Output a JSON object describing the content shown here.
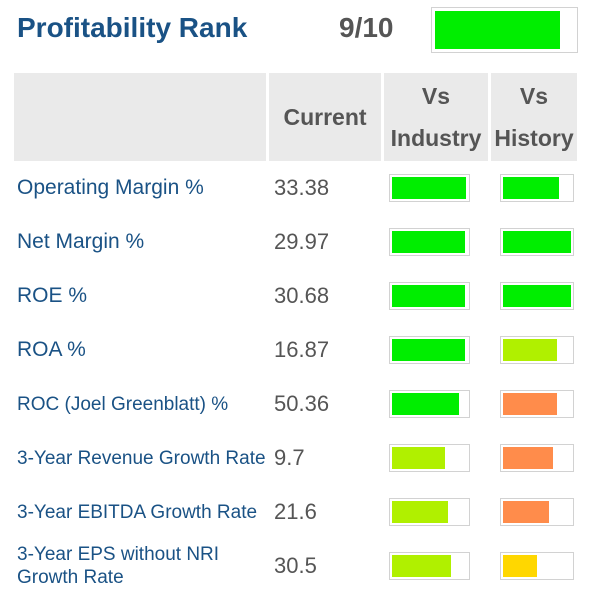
{
  "header": {
    "title": "Profitability Rank",
    "rank": "9/10",
    "rank_fraction": 0.9,
    "rank_color": "#00ee00"
  },
  "columns": {
    "name": "",
    "current": "Current",
    "industry_l1": "Vs",
    "industry_l2": "Industry",
    "history_l1": "Vs",
    "history_l2": "History"
  },
  "colors": {
    "green": "#00ee00",
    "lime": "#b0f000",
    "orange": "#ff8c4b",
    "yellow": "#ffd700",
    "title": "#1a5285",
    "border": "#d2d2d2"
  },
  "rows": [
    {
      "name": "Operating Margin %",
      "current": "33.38",
      "industry": {
        "level": 0.98,
        "color": "#00ee00"
      },
      "history": {
        "level": 0.82,
        "color": "#00ee00"
      }
    },
    {
      "name": "Net Margin %",
      "current": "29.97",
      "industry": {
        "level": 0.97,
        "color": "#00ee00"
      },
      "history": {
        "level": 1.0,
        "color": "#00ee00"
      }
    },
    {
      "name": "ROE %",
      "current": "30.68",
      "industry": {
        "level": 0.97,
        "color": "#00ee00"
      },
      "history": {
        "level": 1.0,
        "color": "#00ee00"
      }
    },
    {
      "name": "ROA %",
      "current": "16.87",
      "industry": {
        "level": 0.97,
        "color": "#00ee00"
      },
      "history": {
        "level": 0.8,
        "color": "#b0f000"
      }
    },
    {
      "name": "ROC (Joel Greenblatt) %",
      "current": "50.36",
      "industry": {
        "level": 0.89,
        "color": "#00ee00"
      },
      "history": {
        "level": 0.8,
        "color": "#ff8c4b"
      }
    },
    {
      "name": "3-Year Revenue Growth Rate",
      "current": "9.7",
      "industry": {
        "level": 0.71,
        "color": "#b0f000"
      },
      "history": {
        "level": 0.74,
        "color": "#ff8c4b"
      }
    },
    {
      "name": "3-Year EBITDA Growth Rate",
      "current": "21.6",
      "industry": {
        "level": 0.74,
        "color": "#b0f000"
      },
      "history": {
        "level": 0.68,
        "color": "#ff8c4b"
      }
    },
    {
      "name": "3-Year EPS without NRI Growth Rate",
      "current": "30.5",
      "industry": {
        "level": 0.78,
        "color": "#b0f000"
      },
      "history": {
        "level": 0.5,
        "color": "#ffd700"
      }
    }
  ]
}
